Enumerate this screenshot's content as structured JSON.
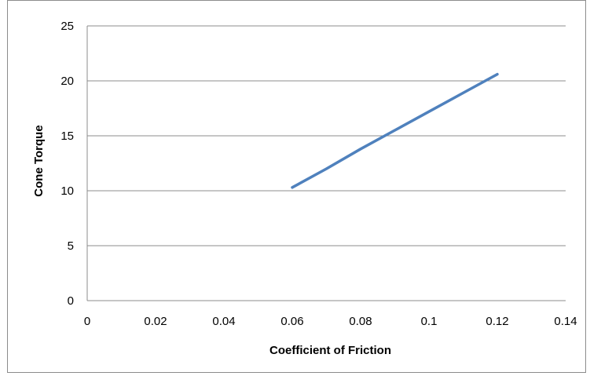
{
  "chart_data": {
    "type": "line",
    "title": "",
    "xlabel": "Coefficient of Friction",
    "ylabel": "Cone Torque",
    "xlim": [
      0,
      0.14
    ],
    "ylim": [
      0,
      25
    ],
    "x_ticks": [
      "0",
      "0.02",
      "0.04",
      "0.06",
      "0.08",
      "0.1",
      "0.12",
      "0.14"
    ],
    "y_ticks": [
      "0",
      "5",
      "10",
      "15",
      "20",
      "25"
    ],
    "grid": true,
    "legend": "none",
    "series": [
      {
        "color": "#4f81bd",
        "x": [
          0.06,
          0.07,
          0.08,
          0.09,
          0.1,
          0.11,
          0.12
        ],
        "y": [
          10.3,
          12.0,
          13.8,
          15.5,
          17.2,
          18.9,
          20.6
        ]
      }
    ]
  }
}
